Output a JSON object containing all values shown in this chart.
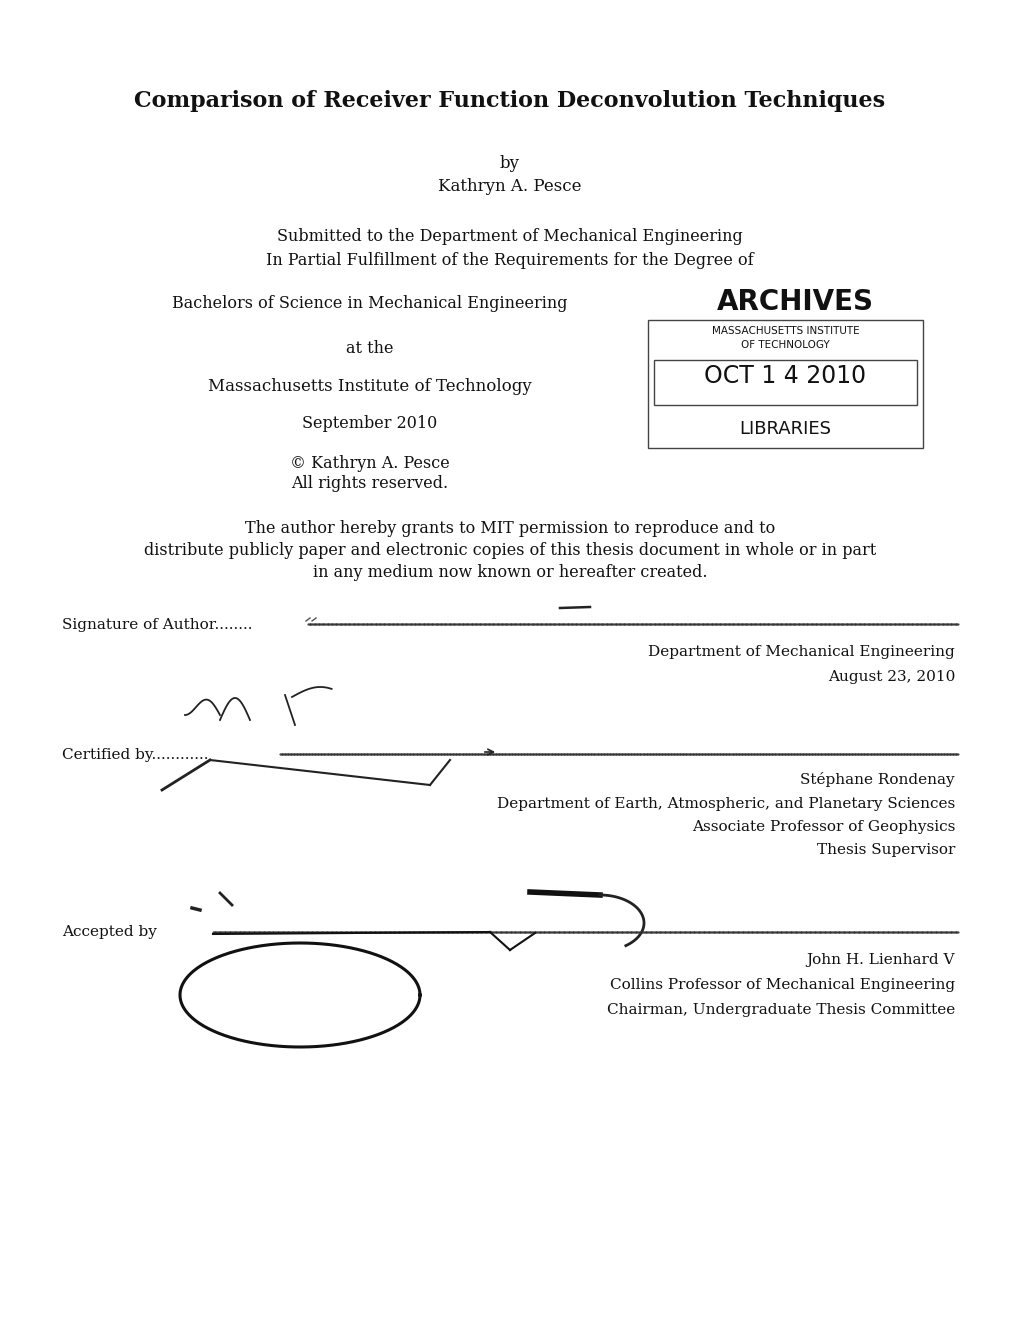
{
  "bg_color": "#ffffff",
  "title": "Comparison of Receiver Function Deconvolution Techniques",
  "by_text": "by",
  "author": "Kathryn A. Pesce",
  "submitted_line1": "Submitted to the Department of Mechanical Engineering",
  "submitted_line2": "In Partial Fulfillment of the Requirements for the Degree of",
  "degree": "Bachelors of Science in Mechanical Engineering",
  "at_the": "at the",
  "institution": "Massachusetts Institute of Technology",
  "date": "September 2010",
  "copyright_line1": "© Kathryn A. Pesce",
  "copyright_line2": "All rights reserved.",
  "permission_line1": "The author hereby grants to MIT permission to reproduce and to",
  "permission_line2": "distribute publicly paper and electronic copies of this thesis document in whole or in part",
  "permission_line3": "in any medium now known or hereafter created.",
  "archives_text": "ARCHIVES",
  "stamp_line1": "MASSACHUSETTS INSTITUTE",
  "stamp_line2": "OF TECHNOLOGY",
  "stamp_date": "OCT 1 4 2010",
  "stamp_bottom": "LIBRARIES",
  "sig_author_label": "Signature of Author........",
  "sig_author_dept": "Department of Mechanical Engineering",
  "sig_author_date": "August 23, 2010",
  "certified_label": "Certified by............",
  "certified_name": "Stéphane Rondenay",
  "certified_dept": "Department of Earth, Atmospheric, and Planetary Sciences",
  "certified_title": "Associate Professor of Geophysics",
  "certified_role": "Thesis Supervisor",
  "accepted_label": "Accepted by",
  "accepted_name": "John H. Lienhard V",
  "accepted_title1": "Collins Professor of Mechanical Engineering",
  "accepted_title2": "Chairman, Undergraduate Thesis Committee"
}
